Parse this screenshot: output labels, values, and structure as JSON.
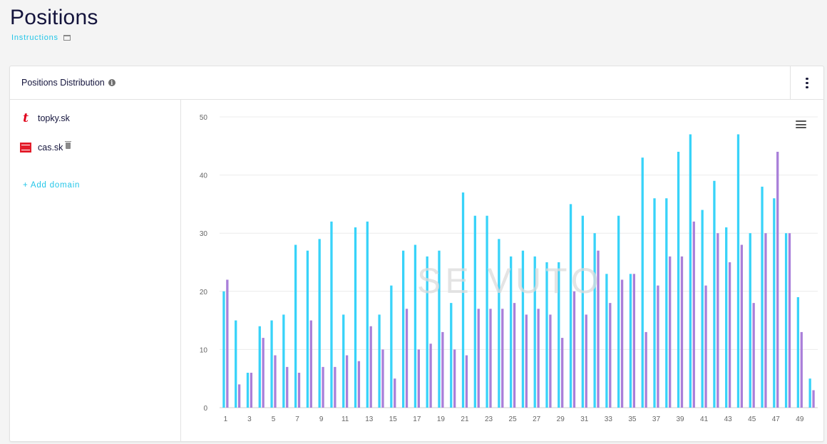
{
  "page": {
    "title": "Positions",
    "instructions_label": "Instructions"
  },
  "card": {
    "title": "Positions Distribution"
  },
  "sidebar": {
    "domains": [
      {
        "name": "topky.sk",
        "icon": "topky-favicon-icon"
      },
      {
        "name": "cas.sk",
        "icon": "cas-favicon-icon"
      }
    ],
    "add_domain_label": "+ Add domain"
  },
  "watermark": "SE VUTO",
  "colors": {
    "series1": "#38d3f9",
    "series2": "#a97fd9",
    "accent": "#23c6e8"
  },
  "chart_data": {
    "type": "bar",
    "categories": [
      1,
      2,
      3,
      4,
      5,
      6,
      7,
      8,
      9,
      10,
      11,
      12,
      13,
      14,
      15,
      16,
      17,
      18,
      19,
      20,
      21,
      22,
      23,
      24,
      25,
      26,
      27,
      28,
      29,
      30,
      31,
      32,
      33,
      34,
      35,
      36,
      37,
      38,
      39,
      40,
      41,
      42,
      43,
      44,
      45,
      46,
      47,
      48,
      49,
      50
    ],
    "tick_labels": [
      "1",
      "3",
      "5",
      "7",
      "9",
      "11",
      "13",
      "15",
      "17",
      "19",
      "21",
      "23",
      "25",
      "27",
      "29",
      "31",
      "33",
      "35",
      "37",
      "39",
      "41",
      "43",
      "45",
      "47",
      "49"
    ],
    "series": [
      {
        "values": [
          20,
          15,
          6,
          14,
          15,
          16,
          28,
          27,
          29,
          32,
          16,
          31,
          32,
          16,
          21,
          27,
          28,
          26,
          27,
          18,
          37,
          33,
          33,
          29,
          26,
          27,
          26,
          25,
          25,
          35,
          33,
          30,
          23,
          33,
          23,
          43,
          36,
          36,
          44,
          47,
          34,
          39,
          31,
          47,
          30,
          38,
          36,
          30,
          19,
          5
        ]
      },
      {
        "values": [
          22,
          4,
          6,
          12,
          9,
          7,
          6,
          15,
          7,
          7,
          9,
          8,
          14,
          10,
          5,
          17,
          10,
          11,
          13,
          10,
          9,
          17,
          17,
          17,
          18,
          16,
          17,
          16,
          12,
          20,
          16,
          27,
          18,
          22,
          23,
          13,
          21,
          26,
          26,
          32,
          21,
          30,
          25,
          28,
          18,
          30,
          44,
          30,
          13,
          3
        ]
      }
    ],
    "ylim": [
      0,
      50
    ],
    "yticks": [
      0,
      10,
      20,
      30,
      40,
      50
    ],
    "grid": true
  }
}
